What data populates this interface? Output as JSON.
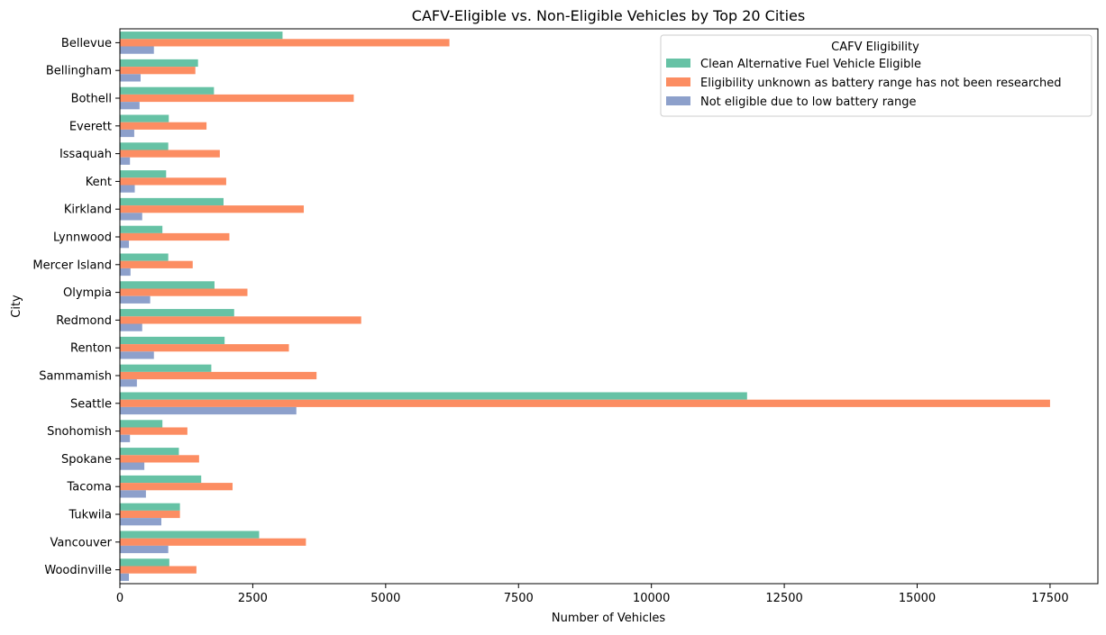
{
  "chart_data": {
    "type": "bar",
    "orientation": "horizontal",
    "title": "CAFV-Eligible vs. Non-Eligible Vehicles by Top 20 Cities",
    "xlabel": "Number of Vehicles",
    "ylabel": "City",
    "xlim": [
      0,
      18400
    ],
    "xticks": [
      0,
      2500,
      5000,
      7500,
      10000,
      12500,
      15000,
      17500
    ],
    "grid": false,
    "legend": {
      "title": "CAFV Eligibility",
      "placement": "top-right"
    },
    "categories": [
      "Bellevue",
      "Bellingham",
      "Bothell",
      "Everett",
      "Issaquah",
      "Kent",
      "Kirkland",
      "Lynnwood",
      "Mercer Island",
      "Olympia",
      "Redmond",
      "Renton",
      "Sammamish",
      "Seattle",
      "Snohomish",
      "Spokane",
      "Tacoma",
      "Tukwila",
      "Vancouver",
      "Woodinville"
    ],
    "series": [
      {
        "name": "Clean Alternative Fuel Vehicle Eligible",
        "color": "#66c2a5",
        "values": [
          3060,
          1470,
          1770,
          920,
          910,
          870,
          1950,
          800,
          910,
          1780,
          2150,
          1970,
          1720,
          11800,
          800,
          1110,
          1530,
          1130,
          2620,
          930
        ]
      },
      {
        "name": "Eligibility unknown as battery range has not been researched",
        "color": "#fc8d62",
        "values": [
          6200,
          1420,
          4400,
          1630,
          1880,
          2000,
          3460,
          2060,
          1370,
          2400,
          4540,
          3180,
          3700,
          17500,
          1270,
          1490,
          2120,
          1130,
          3500,
          1440
        ]
      },
      {
        "name": "Not eligible due to low battery range",
        "color": "#8da0cb",
        "values": [
          640,
          390,
          370,
          270,
          190,
          280,
          420,
          170,
          200,
          570,
          420,
          640,
          320,
          3320,
          190,
          460,
          490,
          780,
          910,
          170
        ]
      }
    ]
  }
}
